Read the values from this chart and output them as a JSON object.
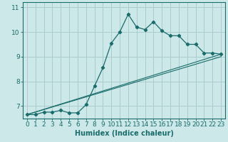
{
  "xlabel": "Humidex (Indice chaleur)",
  "background_color": "#cce8e8",
  "grid_color": "#aacccc",
  "line_color": "#1a6b6b",
  "xlim": [
    -0.5,
    23.5
  ],
  "ylim": [
    6.5,
    11.2
  ],
  "yticks": [
    7,
    8,
    9,
    10,
    11
  ],
  "xticks": [
    0,
    1,
    2,
    3,
    4,
    5,
    6,
    7,
    8,
    9,
    10,
    11,
    12,
    13,
    14,
    15,
    16,
    17,
    18,
    19,
    20,
    21,
    22,
    23
  ],
  "line1_x": [
    0,
    1,
    2,
    3,
    4,
    5,
    6,
    7,
    8,
    9,
    10,
    11,
    12,
    13,
    14,
    15,
    16,
    17,
    18,
    19,
    20,
    21,
    22,
    23
  ],
  "line1_y": [
    6.65,
    6.65,
    6.75,
    6.75,
    6.82,
    6.72,
    6.72,
    7.05,
    7.8,
    8.55,
    9.55,
    10.0,
    10.72,
    10.2,
    10.1,
    10.42,
    10.05,
    9.85,
    9.85,
    9.5,
    9.5,
    9.15,
    9.15,
    9.1
  ],
  "line2_x": [
    0,
    23
  ],
  "line2_y": [
    6.65,
    9.1
  ],
  "line3_x": [
    0,
    23
  ],
  "line3_y": [
    6.65,
    9.0
  ],
  "fontsize_xlabel": 7,
  "fontsize_ticks": 6.5
}
